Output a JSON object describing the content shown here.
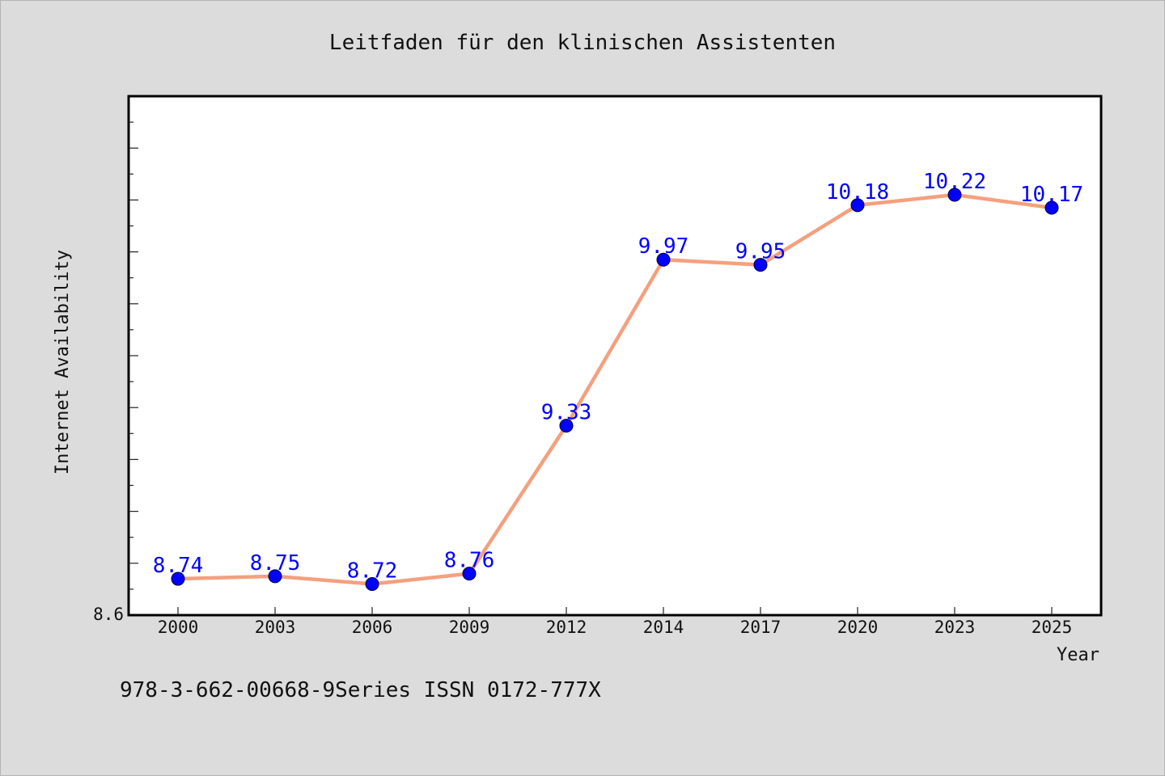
{
  "chart_data": {
    "type": "line",
    "title": "Leitfaden für den klinischen Assistenten",
    "xlabel": "Year",
    "ylabel": "Internet Availability",
    "categories": [
      "2000",
      "2003",
      "2006",
      "2009",
      "2012",
      "2014",
      "2017",
      "2020",
      "2023",
      "2025"
    ],
    "series": [
      {
        "values": [
          8.74,
          8.75,
          8.72,
          8.76,
          9.33,
          9.97,
          9.95,
          10.18,
          10.22,
          10.17
        ],
        "labels": [
          "8.74",
          "8.75",
          "8.72",
          "8.76",
          "9.33",
          "9.97",
          "9.95",
          "10.18",
          "10.22",
          "10.17"
        ]
      }
    ],
    "ylim": [
      8.6,
      10.6
    ],
    "ytick_labels": [
      "8.6"
    ],
    "grid": false,
    "colors": {
      "line": "#f4a07e",
      "marker": "#0000ff",
      "data_label": "#0000ff",
      "plot_background": "#ffffff",
      "page_background": "#dcdcdc"
    }
  },
  "footnote": "978-3-662-00668-9Series ISSN 0172-777X"
}
